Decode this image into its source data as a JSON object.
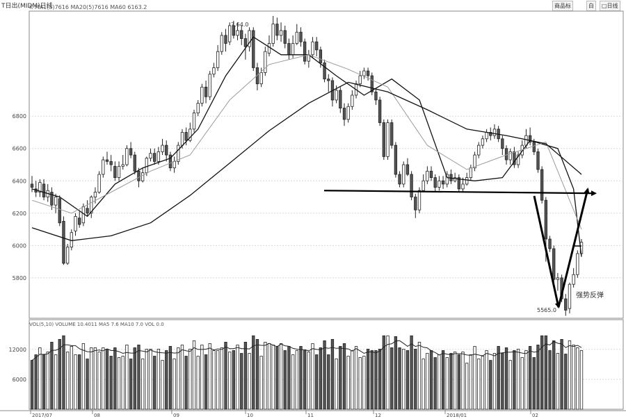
{
  "window": {
    "title": "T日出(MIDM)日线",
    "buttons": [
      "商品标",
      "白",
      "□日线"
    ]
  },
  "chart_data": [
    {
      "type": "candlestick",
      "name": "price",
      "legend": "K  MA1(5)7616 MA20(5)7616 MA60 6163.2",
      "ylim": [
        5550,
        7450
      ],
      "yticks": [
        5800,
        6000,
        6200,
        6400,
        6600,
        6800
      ],
      "ytick_labels": [
        "5800",
        "6000",
        "6200",
        "6400",
        "6600",
        "6800"
      ],
      "grid": true,
      "annotations": {
        "peak_label": "7.64.0",
        "low_label": "5565.0",
        "rebound_label": "强势反弹"
      },
      "support_level": 6340,
      "candles": [
        [
          6380,
          6360,
          6430,
          6330
        ],
        [
          6350,
          6330,
          6400,
          6300
        ],
        [
          6330,
          6390,
          6410,
          6300
        ],
        [
          6380,
          6300,
          6410,
          6280
        ],
        [
          6300,
          6340,
          6380,
          6270
        ],
        [
          6330,
          6250,
          6360,
          6220
        ],
        [
          6250,
          6300,
          6320,
          6200
        ],
        [
          6290,
          6140,
          6310,
          6120
        ],
        [
          6150,
          5890,
          6180,
          5880
        ],
        [
          5890,
          5990,
          6010,
          5880
        ],
        [
          5990,
          6080,
          6100,
          5970
        ],
        [
          6090,
          6180,
          6200,
          6060
        ],
        [
          6170,
          6130,
          6210,
          6110
        ],
        [
          6140,
          6240,
          6260,
          6120
        ],
        [
          6230,
          6200,
          6280,
          6180
        ],
        [
          6200,
          6300,
          6310,
          6170
        ],
        [
          6300,
          6330,
          6360,
          6260
        ],
        [
          6330,
          6440,
          6460,
          6320
        ],
        [
          6440,
          6530,
          6550,
          6420
        ],
        [
          6530,
          6520,
          6580,
          6500
        ],
        [
          6520,
          6500,
          6560,
          6460
        ],
        [
          6490,
          6420,
          6520,
          6400
        ],
        [
          6420,
          6490,
          6520,
          6400
        ],
        [
          6490,
          6500,
          6560,
          6470
        ],
        [
          6500,
          6600,
          6620,
          6490
        ],
        [
          6600,
          6560,
          6640,
          6540
        ],
        [
          6560,
          6460,
          6580,
          6440
        ],
        [
          6460,
          6400,
          6480,
          6360
        ],
        [
          6400,
          6450,
          6480,
          6390
        ],
        [
          6450,
          6540,
          6550,
          6430
        ],
        [
          6540,
          6570,
          6600,
          6520
        ],
        [
          6570,
          6520,
          6600,
          6500
        ],
        [
          6520,
          6580,
          6610,
          6500
        ],
        [
          6580,
          6620,
          6660,
          6560
        ],
        [
          6620,
          6560,
          6650,
          6520
        ],
        [
          6560,
          6480,
          6580,
          6460
        ],
        [
          6480,
          6520,
          6550,
          6450
        ],
        [
          6520,
          6620,
          6640,
          6500
        ],
        [
          6620,
          6700,
          6720,
          6600
        ],
        [
          6700,
          6650,
          6730,
          6620
        ],
        [
          6650,
          6720,
          6760,
          6640
        ],
        [
          6720,
          6820,
          6840,
          6700
        ],
        [
          6820,
          6880,
          6900,
          6800
        ],
        [
          6880,
          6980,
          7000,
          6860
        ],
        [
          6980,
          6920,
          7020,
          6880
        ],
        [
          6920,
          7060,
          7080,
          6900
        ],
        [
          7060,
          7100,
          7130,
          7040
        ],
        [
          7100,
          7200,
          7240,
          7080
        ],
        [
          7200,
          7300,
          7320,
          7180
        ],
        [
          7300,
          7250,
          7340,
          7200
        ],
        [
          7260,
          7360,
          7380,
          7240
        ],
        [
          7360,
          7300,
          7390,
          7280
        ],
        [
          7300,
          7330,
          7380,
          7270
        ],
        [
          7330,
          7280,
          7360,
          7240
        ],
        [
          7280,
          7230,
          7310,
          7150
        ],
        [
          7230,
          7330,
          7350,
          7200
        ],
        [
          7330,
          7100,
          7350,
          7080
        ],
        [
          7100,
          7000,
          7130,
          6960
        ],
        [
          7000,
          7070,
          7100,
          6980
        ],
        [
          7070,
          7200,
          7230,
          7050
        ],
        [
          7190,
          7250,
          7300,
          7170
        ],
        [
          7250,
          7370,
          7420,
          7230
        ],
        [
          7370,
          7300,
          7410,
          7270
        ],
        [
          7300,
          7330,
          7380,
          7260
        ],
        [
          7330,
          7250,
          7360,
          7220
        ],
        [
          7250,
          7180,
          7280,
          7150
        ],
        [
          7180,
          7250,
          7300,
          7160
        ],
        [
          7250,
          7320,
          7370,
          7240
        ],
        [
          7320,
          7260,
          7350,
          7230
        ],
        [
          7260,
          7140,
          7280,
          7120
        ],
        [
          7140,
          7180,
          7210,
          7100
        ],
        [
          7180,
          7260,
          7290,
          7160
        ],
        [
          7260,
          7210,
          7290,
          7170
        ],
        [
          7210,
          7130,
          7230,
          7100
        ],
        [
          7130,
          7030,
          7150,
          7010
        ],
        [
          7030,
          7020,
          7060,
          6950
        ],
        [
          7020,
          6900,
          7040,
          6860
        ],
        [
          6900,
          6960,
          6990,
          6880
        ],
        [
          6960,
          6850,
          6980,
          6820
        ],
        [
          6850,
          6780,
          6880,
          6740
        ],
        [
          6780,
          6860,
          6880,
          6760
        ],
        [
          6860,
          6930,
          6960,
          6840
        ],
        [
          6930,
          7000,
          7020,
          6910
        ],
        [
          7000,
          7050,
          7080,
          6980
        ],
        [
          7050,
          7080,
          7100,
          7030
        ],
        [
          7080,
          7050,
          7100,
          7020
        ],
        [
          7050,
          6950,
          7070,
          6930
        ],
        [
          6950,
          6900,
          6970,
          6870
        ],
        [
          6900,
          6760,
          6920,
          6740
        ],
        [
          6760,
          6550,
          6780,
          6530
        ],
        [
          6550,
          6760,
          6780,
          6530
        ],
        [
          6760,
          6620,
          6780,
          6600
        ],
        [
          6620,
          6440,
          6640,
          6420
        ],
        [
          6440,
          6380,
          6460,
          6360
        ],
        [
          6380,
          6500,
          6520,
          6360
        ],
        [
          6500,
          6440,
          6540,
          6430
        ],
        [
          6440,
          6300,
          6460,
          6280
        ],
        [
          6300,
          6220,
          6320,
          6170
        ],
        [
          6220,
          6340,
          6360,
          6200
        ],
        [
          6340,
          6400,
          6440,
          6330
        ],
        [
          6400,
          6460,
          6490,
          6380
        ],
        [
          6460,
          6420,
          6490,
          6400
        ],
        [
          6420,
          6360,
          6440,
          6330
        ],
        [
          6360,
          6400,
          6430,
          6340
        ],
        [
          6400,
          6380,
          6430,
          6350
        ],
        [
          6380,
          6440,
          6460,
          6360
        ],
        [
          6440,
          6400,
          6470,
          6380
        ],
        [
          6400,
          6420,
          6450,
          6390
        ],
        [
          6420,
          6350,
          6440,
          6330
        ],
        [
          6350,
          6380,
          6420,
          6330
        ],
        [
          6380,
          6420,
          6450,
          6370
        ],
        [
          6420,
          6480,
          6500,
          6400
        ],
        [
          6480,
          6560,
          6580,
          6460
        ],
        [
          6560,
          6620,
          6640,
          6540
        ],
        [
          6620,
          6660,
          6680,
          6600
        ],
        [
          6660,
          6700,
          6720,
          6640
        ],
        [
          6700,
          6680,
          6730,
          6650
        ],
        [
          6680,
          6720,
          6750,
          6660
        ],
        [
          6720,
          6660,
          6740,
          6640
        ],
        [
          6660,
          6600,
          6680,
          6560
        ],
        [
          6600,
          6530,
          6620,
          6500
        ],
        [
          6530,
          6580,
          6600,
          6500
        ],
        [
          6580,
          6500,
          6610,
          6480
        ],
        [
          6500,
          6560,
          6580,
          6480
        ],
        [
          6560,
          6620,
          6650,
          6540
        ],
        [
          6620,
          6680,
          6720,
          6600
        ],
        [
          6680,
          6640,
          6730,
          6620
        ],
        [
          6640,
          6580,
          6660,
          6560
        ],
        [
          6580,
          6470,
          6600,
          6450
        ],
        [
          6470,
          6280,
          6490,
          6260
        ],
        [
          6280,
          6040,
          6300,
          5900
        ],
        [
          6040,
          5980,
          6060,
          5960
        ],
        [
          5980,
          5790,
          6000,
          5760
        ],
        [
          5790,
          5800,
          5830,
          5720
        ],
        [
          5800,
          5670,
          5820,
          5650
        ],
        [
          5670,
          5600,
          5700,
          5565
        ],
        [
          5610,
          5760,
          5770,
          5580
        ],
        [
          5760,
          5820,
          5860,
          5740
        ],
        [
          5820,
          5950,
          5970,
          5800
        ],
        [
          5950,
          6020,
          6040,
          5930
        ]
      ],
      "ma": [
        {
          "name": "MA1",
          "color": "#111111",
          "x": [
            0,
            7,
            14,
            21,
            28,
            35,
            42,
            49,
            56,
            63,
            70,
            77,
            84,
            91,
            98,
            105,
            112,
            119,
            126,
            133,
            137,
            139
          ],
          "y": [
            6350,
            6300,
            6180,
            6380,
            6480,
            6540,
            6720,
            7050,
            7290,
            7180,
            7180,
            7050,
            6930,
            7030,
            6900,
            6420,
            6400,
            6420,
            6650,
            6600,
            6350,
            5930
          ]
        },
        {
          "name": "MA20",
          "color": "#9a9a9a",
          "x": [
            0,
            10,
            20,
            30,
            40,
            50,
            60,
            70,
            80,
            90,
            100,
            110,
            120,
            130,
            139
          ],
          "y": [
            6280,
            6200,
            6330,
            6460,
            6560,
            6900,
            7120,
            7180,
            7090,
            6980,
            6620,
            6470,
            6560,
            6640,
            6100
          ]
        },
        {
          "name": "MA60",
          "color": "#111111",
          "x": [
            0,
            10,
            20,
            30,
            40,
            50,
            60,
            70,
            80,
            90,
            100,
            110,
            120,
            130,
            139
          ],
          "y": [
            6110,
            6030,
            6060,
            6140,
            6310,
            6510,
            6710,
            6880,
            7010,
            6950,
            6840,
            6720,
            6680,
            6630,
            6440
          ]
        }
      ]
    },
    {
      "type": "bar",
      "name": "volume",
      "legend": "VOL(5,10) VOLUME 10.4011 MA5 7.6  MA10 7.0 VOL 0.0",
      "ylim": [
        0,
        16000
      ],
      "yticks": [
        6000,
        12000
      ],
      "ytick_labels": [
        "6000",
        "12000"
      ],
      "xtick_labels": [
        "2017/07",
        "08",
        "09",
        "10",
        "11",
        "12",
        "2018/01",
        "02"
      ],
      "xtick_index": [
        0,
        19,
        45,
        70,
        95,
        115,
        140,
        165
      ]
    }
  ]
}
